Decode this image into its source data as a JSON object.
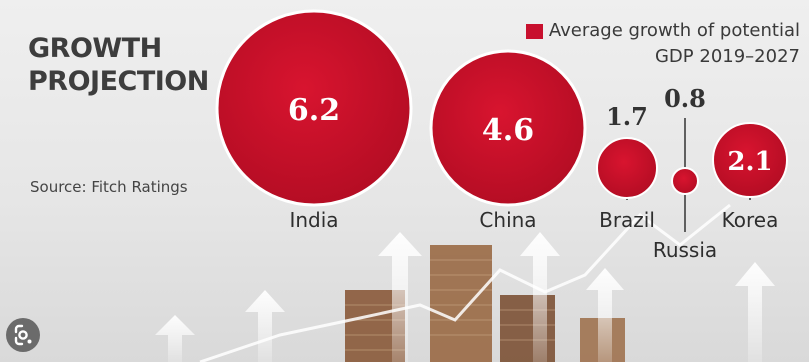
{
  "header": {
    "title_line1": "GROWTH",
    "title_line2": "PROJECTION",
    "source": "Source: Fitch Ratings"
  },
  "legend": {
    "line1": "Average growth of potential",
    "line2": "GDP 2019–2027",
    "color": "#c8102e"
  },
  "icons": {
    "lens": "google-lens-icon"
  },
  "chart_data": {
    "type": "bubble",
    "title": "GROWTH PROJECTION",
    "legend": "Average growth of potential GDP 2019–2027",
    "legend_placement": "top-right",
    "categories": [
      "India",
      "China",
      "Brazil",
      "Russia",
      "Korea"
    ],
    "values": [
      6.2,
      4.6,
      1.7,
      0.8,
      2.1
    ],
    "value_labels": [
      "6.2",
      "4.6",
      "1.7",
      "0.8",
      "2.1"
    ],
    "color": "#c8102e"
  }
}
